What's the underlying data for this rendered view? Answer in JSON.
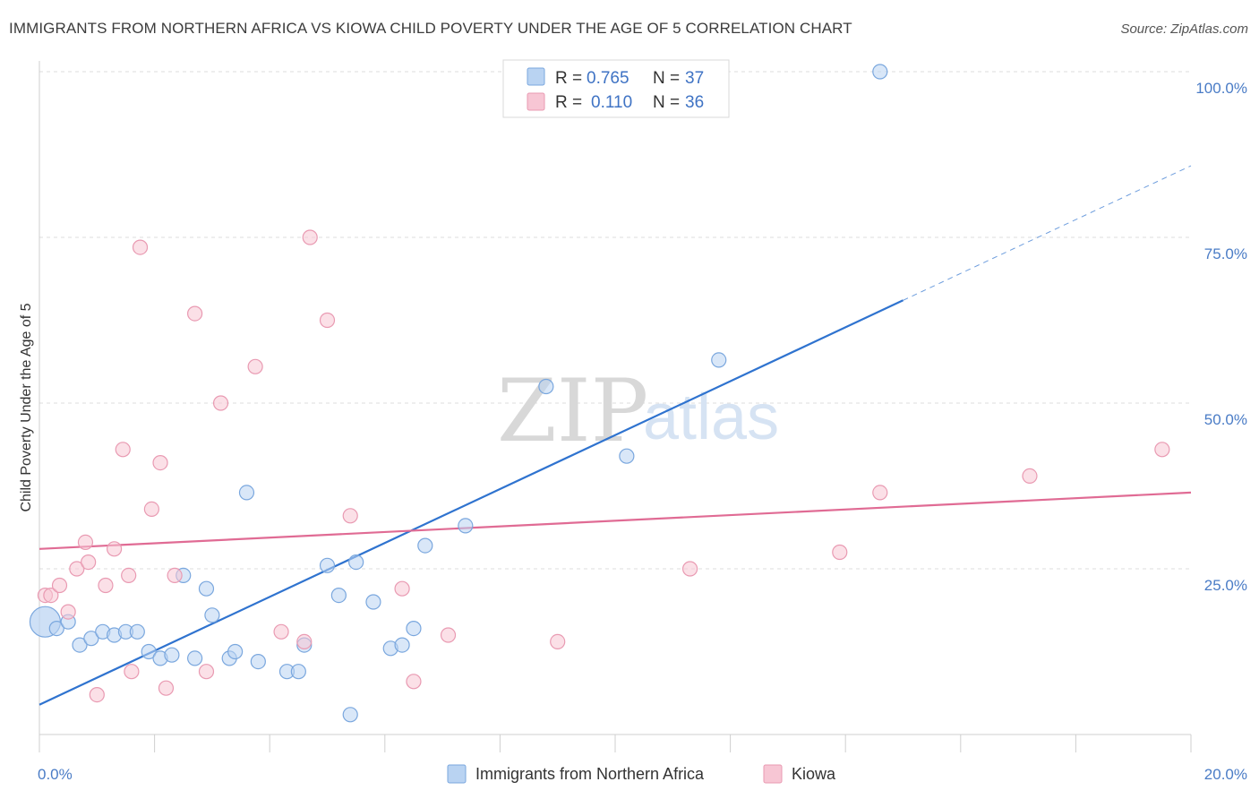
{
  "title": "IMMIGRANTS FROM NORTHERN AFRICA VS KIOWA CHILD POVERTY UNDER THE AGE OF 5 CORRELATION CHART",
  "source": "Source: ZipAtlas.com",
  "watermark": {
    "zip": "ZIP",
    "atlas": "atlas"
  },
  "colors": {
    "blue_fill": "#b9d3f2",
    "blue_stroke": "#7aa7de",
    "blue_line": "#2f73cf",
    "pink_fill": "#f7c6d4",
    "pink_stroke": "#e99ab2",
    "pink_line": "#e06b94",
    "grid": "#dddddd",
    "tick_text": "#4a7cc6"
  },
  "legend": {
    "rows": [
      {
        "r_label": "R =",
        "r_value": "0.765",
        "n_label": "N =",
        "n_value": "37",
        "swatch": "blue"
      },
      {
        "r_label": "R =",
        "r_value": "0.110",
        "n_label": "N =",
        "n_value": "36",
        "swatch": "pink"
      }
    ]
  },
  "bottom_legend": [
    {
      "label": "Immigrants from Northern Africa",
      "swatch": "blue"
    },
    {
      "label": "Kiowa",
      "swatch": "pink"
    }
  ],
  "chart_data": {
    "type": "scatter",
    "ylabel": "Child Poverty Under the Age of 5",
    "xlim": [
      0,
      20
    ],
    "ylim": [
      0,
      100
    ],
    "x_tick_labels": [
      {
        "value": 0,
        "label": "0.0%"
      },
      {
        "value": 20,
        "label": "20.0%"
      }
    ],
    "y_tick_labels": [
      {
        "value": 25,
        "label": "25.0%"
      },
      {
        "value": 50,
        "label": "50.0%"
      },
      {
        "value": 75,
        "label": "75.0%"
      },
      {
        "value": 100,
        "label": "100.0%"
      }
    ],
    "grid": "dashed horizontal",
    "series": [
      {
        "name": "Immigrants from Northern Africa",
        "color": "blue",
        "trend": {
          "x0": 0,
          "y0": 4.5,
          "x1": 15,
          "y1": 65.5,
          "dashed_to_x": 20,
          "dashed_to_y": 85.8
        },
        "points": [
          {
            "x": 0.1,
            "y": 17,
            "big": true
          },
          {
            "x": 0.3,
            "y": 16
          },
          {
            "x": 0.5,
            "y": 17
          },
          {
            "x": 0.7,
            "y": 13.5
          },
          {
            "x": 0.9,
            "y": 14.5
          },
          {
            "x": 1.1,
            "y": 15.5
          },
          {
            "x": 1.3,
            "y": 15
          },
          {
            "x": 1.5,
            "y": 15.5
          },
          {
            "x": 1.7,
            "y": 15.5
          },
          {
            "x": 1.9,
            "y": 12.5
          },
          {
            "x": 2.1,
            "y": 11.5
          },
          {
            "x": 2.3,
            "y": 12
          },
          {
            "x": 2.5,
            "y": 24
          },
          {
            "x": 2.7,
            "y": 11.5
          },
          {
            "x": 2.9,
            "y": 22
          },
          {
            "x": 3.0,
            "y": 18
          },
          {
            "x": 3.3,
            "y": 11.5
          },
          {
            "x": 3.4,
            "y": 12.5
          },
          {
            "x": 3.6,
            "y": 36.5
          },
          {
            "x": 3.8,
            "y": 11
          },
          {
            "x": 4.3,
            "y": 9.5
          },
          {
            "x": 4.5,
            "y": 9.5
          },
          {
            "x": 4.6,
            "y": 13.5
          },
          {
            "x": 5.0,
            "y": 25.5
          },
          {
            "x": 5.2,
            "y": 21
          },
          {
            "x": 5.4,
            "y": 3
          },
          {
            "x": 5.5,
            "y": 26
          },
          {
            "x": 5.8,
            "y": 20
          },
          {
            "x": 6.1,
            "y": 13
          },
          {
            "x": 6.3,
            "y": 13.5
          },
          {
            "x": 6.5,
            "y": 16
          },
          {
            "x": 6.7,
            "y": 28.5
          },
          {
            "x": 7.4,
            "y": 31.5
          },
          {
            "x": 8.8,
            "y": 52.5
          },
          {
            "x": 10.2,
            "y": 42
          },
          {
            "x": 11.8,
            "y": 56.5
          },
          {
            "x": 14.6,
            "y": 100
          }
        ]
      },
      {
        "name": "Kiowa",
        "color": "pink",
        "trend": {
          "x0": 0,
          "y0": 28,
          "x1": 20,
          "y1": 36.5
        },
        "points": [
          {
            "x": 0.1,
            "y": 21
          },
          {
            "x": 0.2,
            "y": 21
          },
          {
            "x": 0.35,
            "y": 22.5
          },
          {
            "x": 0.5,
            "y": 18.5
          },
          {
            "x": 0.65,
            "y": 25
          },
          {
            "x": 0.8,
            "y": 29
          },
          {
            "x": 0.85,
            "y": 26
          },
          {
            "x": 1.0,
            "y": 6
          },
          {
            "x": 1.15,
            "y": 22.5
          },
          {
            "x": 1.3,
            "y": 28
          },
          {
            "x": 1.45,
            "y": 43
          },
          {
            "x": 1.55,
            "y": 24
          },
          {
            "x": 1.6,
            "y": 9.5
          },
          {
            "x": 1.75,
            "y": 73.5
          },
          {
            "x": 1.95,
            "y": 34
          },
          {
            "x": 2.1,
            "y": 41
          },
          {
            "x": 2.2,
            "y": 7
          },
          {
            "x": 2.35,
            "y": 24
          },
          {
            "x": 2.7,
            "y": 63.5
          },
          {
            "x": 2.9,
            "y": 9.5
          },
          {
            "x": 3.15,
            "y": 50
          },
          {
            "x": 3.75,
            "y": 55.5
          },
          {
            "x": 4.2,
            "y": 15.5
          },
          {
            "x": 4.6,
            "y": 14
          },
          {
            "x": 4.7,
            "y": 75
          },
          {
            "x": 5.0,
            "y": 62.5
          },
          {
            "x": 5.4,
            "y": 33
          },
          {
            "x": 6.3,
            "y": 22
          },
          {
            "x": 6.5,
            "y": 8
          },
          {
            "x": 7.1,
            "y": 15
          },
          {
            "x": 9.0,
            "y": 14
          },
          {
            "x": 11.3,
            "y": 25
          },
          {
            "x": 13.9,
            "y": 27.5
          },
          {
            "x": 14.6,
            "y": 36.5
          },
          {
            "x": 17.2,
            "y": 39
          },
          {
            "x": 19.5,
            "y": 43
          }
        ]
      }
    ]
  }
}
